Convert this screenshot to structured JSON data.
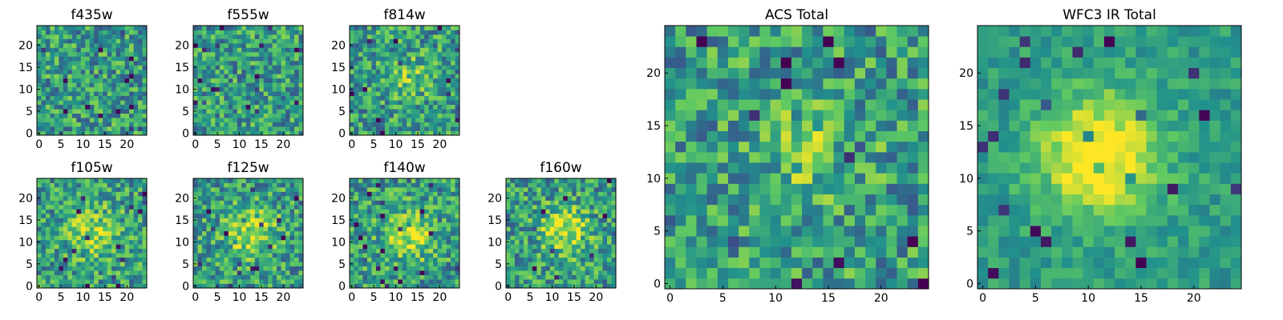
{
  "chart_data": {
    "type": "heatmap",
    "grid_size": 25,
    "colormap": "viridis",
    "colors": [
      "#440154",
      "#3b528b",
      "#21918c",
      "#5ec962",
      "#fde725"
    ],
    "grid": false,
    "panels": [
      {
        "title": "f435w",
        "xticks": [
          "0",
          "5",
          "10",
          "15",
          "20"
        ],
        "yticks": [
          "0",
          "5",
          "10",
          "15",
          "20"
        ],
        "xlim": [
          0,
          24
        ],
        "ylim": [
          0,
          24
        ],
        "pattern": "noise"
      },
      {
        "title": "f555w",
        "xticks": [
          "0",
          "5",
          "10",
          "15",
          "20"
        ],
        "yticks": [
          "0",
          "5",
          "10",
          "15",
          "20"
        ],
        "xlim": [
          0,
          24
        ],
        "ylim": [
          0,
          24
        ],
        "pattern": "noise"
      },
      {
        "title": "f814w",
        "xticks": [
          "0",
          "5",
          "10",
          "15",
          "20"
        ],
        "yticks": [
          "0",
          "5",
          "10",
          "15",
          "20"
        ],
        "xlim": [
          0,
          24
        ],
        "ylim": [
          0,
          24
        ],
        "pattern": "weak-source"
      },
      {
        "title": "f105w",
        "xticks": [
          "0",
          "5",
          "10",
          "15",
          "20"
        ],
        "yticks": [
          "0",
          "5",
          "10",
          "15",
          "20"
        ],
        "xlim": [
          0,
          24
        ],
        "ylim": [
          0,
          24
        ],
        "pattern": "source"
      },
      {
        "title": "f125w",
        "xticks": [
          "0",
          "5",
          "10",
          "15",
          "20"
        ],
        "yticks": [
          "0",
          "5",
          "10",
          "15",
          "20"
        ],
        "xlim": [
          0,
          24
        ],
        "ylim": [
          0,
          24
        ],
        "pattern": "source"
      },
      {
        "title": "f140w",
        "xticks": [
          "0",
          "5",
          "10",
          "15",
          "20"
        ],
        "yticks": [
          "0",
          "5",
          "10",
          "15",
          "20"
        ],
        "xlim": [
          0,
          24
        ],
        "ylim": [
          0,
          24
        ],
        "pattern": "source"
      },
      {
        "title": "f160w",
        "xticks": [
          "0",
          "5",
          "10",
          "15",
          "20"
        ],
        "yticks": [
          "0",
          "5",
          "10",
          "15",
          "20"
        ],
        "xlim": [
          0,
          24
        ],
        "ylim": [
          0,
          24
        ],
        "pattern": "source"
      },
      {
        "title": "ACS Total",
        "xticks": [
          "0",
          "5",
          "10",
          "15",
          "20"
        ],
        "yticks": [
          "0",
          "5",
          "10",
          "15",
          "20"
        ],
        "xlim": [
          0,
          24
        ],
        "ylim": [
          0,
          24
        ],
        "pattern": "weak-source"
      },
      {
        "title": "WFC3 IR Total",
        "xticks": [
          "0",
          "5",
          "10",
          "15",
          "20"
        ],
        "yticks": [
          "0",
          "5",
          "10",
          "15",
          "20"
        ],
        "xlim": [
          0,
          24
        ],
        "ylim": [
          0,
          24
        ],
        "pattern": "strong-source"
      }
    ]
  }
}
